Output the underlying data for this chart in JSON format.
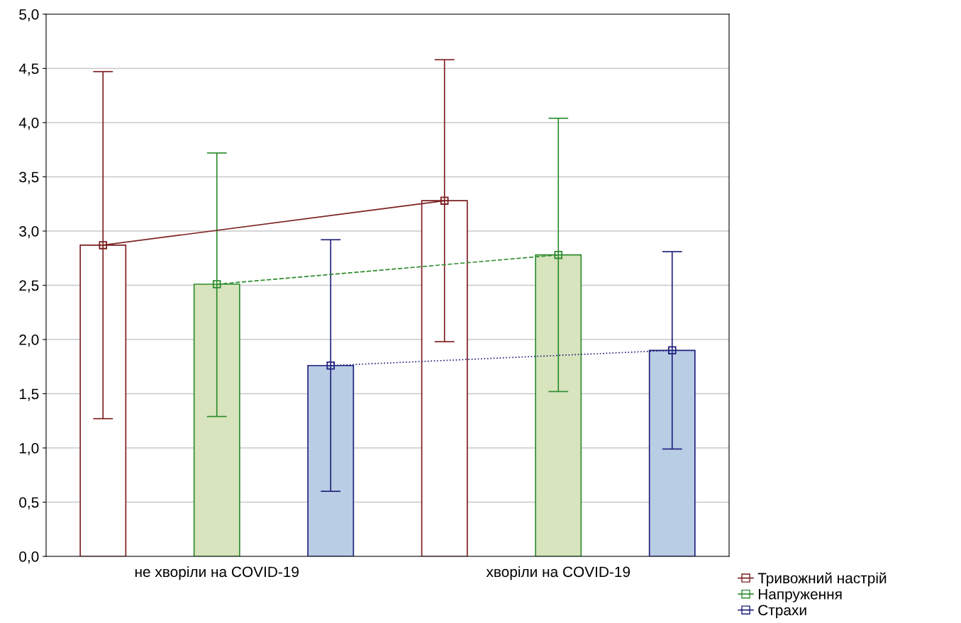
{
  "chart_data": {
    "type": "bar",
    "categories": [
      "не хворіли на COVID-19",
      "хворіли на COVID-19"
    ],
    "series": [
      {
        "color": "#ffffff",
        "values": [
          2.87,
          3.28
        ]
      },
      {
        "color": "#d7e4bd",
        "values": [
          2.51,
          2.78
        ]
      },
      {
        "color": "#b9cde5",
        "values": [
          1.76,
          1.9
        ]
      },
      {
        "type": "line",
        "name": "Тривожний настрій",
        "color": "#7b1f1f",
        "values": [
          2.87,
          3.28
        ],
        "errors": [
          [
            1.27,
            4.47
          ],
          [
            1.98,
            4.58
          ]
        ],
        "line_style": "solid"
      },
      {
        "type": "line",
        "name": "Напруження",
        "color": "#2e8b2e",
        "values": [
          2.51,
          2.78
        ],
        "errors": [
          [
            1.29,
            3.72
          ],
          [
            1.52,
            4.04
          ]
        ],
        "line_style": "dashed"
      },
      {
        "type": "line",
        "name": "Страхи",
        "color": "#1f1f7b",
        "values": [
          1.76,
          1.9
        ],
        "errors": [
          [
            0.6,
            2.92
          ],
          [
            0.99,
            2.81
          ]
        ],
        "line_style": "dotted"
      }
    ],
    "ylim": [
      0,
      5
    ],
    "yticks": [
      {
        "value": 0,
        "label": "0,0"
      },
      {
        "value": 0.5,
        "label": "0,5"
      },
      {
        "value": 1,
        "label": "1,0"
      },
      {
        "value": 1.5,
        "label": "1,5"
      },
      {
        "value": 2,
        "label": "2,0"
      },
      {
        "value": 2.5,
        "label": "2,5"
      },
      {
        "value": 3,
        "label": "3,0"
      },
      {
        "value": 3.5,
        "label": "3,5"
      },
      {
        "value": 4,
        "label": "4,0"
      },
      {
        "value": 4.5,
        "label": "4,5"
      },
      {
        "value": 5,
        "label": "5,0"
      }
    ],
    "grid": "y",
    "legend": "bottom right",
    "marker": "square"
  }
}
